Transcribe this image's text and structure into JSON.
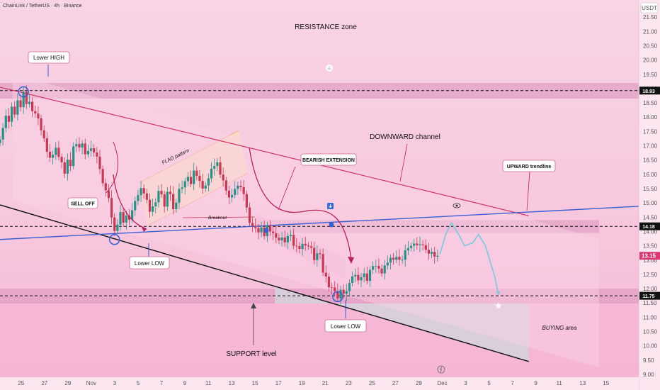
{
  "symbol": "ChainLink / TetherUS · 4h · Binance",
  "currency": "USDT",
  "colors": {
    "resistance_band": "#d88fbc",
    "support_band": "#d88fbc",
    "channel_line": "#cf3266",
    "support_line": "#111111",
    "trendline": "#3b5fd1",
    "bull": "#2b8f86",
    "bear": "#c23a54",
    "projection": "#7cc8df",
    "price_tag": "#d93872"
  },
  "chart_data": {
    "type": "candlestick",
    "y_ticks": [
      "21.50",
      "21.00",
      "20.50",
      "20.00",
      "19.50",
      "19.00",
      "18.50",
      "18.00",
      "17.50",
      "17.00",
      "16.50",
      "16.00",
      "15.50",
      "15.00",
      "14.50",
      "14.00",
      "13.50",
      "13.00",
      "12.50",
      "12.00",
      "11.50",
      "11.00",
      "10.50",
      "10.00",
      "9.50",
      "9.00"
    ],
    "ylim": [
      8.9,
      22.1
    ],
    "x_ticks": [
      "25",
      "27",
      "29",
      "Nov",
      "3",
      "5",
      "7",
      "9",
      "11",
      "13",
      "15",
      "17",
      "19",
      "21",
      "23",
      "25",
      "27",
      "29",
      "Dec",
      "3",
      "5",
      "7",
      "9",
      "11",
      "13",
      "15"
    ],
    "x_tick_idx": [
      0,
      2,
      4,
      6,
      8,
      10,
      12,
      14,
      16,
      18,
      20,
      22,
      24,
      26,
      28,
      30,
      32,
      34,
      36,
      38,
      40,
      42,
      44,
      46,
      48,
      50
    ],
    "xlim": [
      -1.8,
      52.8
    ],
    "key_levels": [
      {
        "label": "18.93",
        "value": 18.93,
        "band": [
          18.65,
          19.2
        ]
      },
      {
        "label": "14.18",
        "value": 14.18,
        "band": [
          13.95,
          14.4
        ]
      },
      {
        "label": "11.75",
        "value": 11.75,
        "band": [
          11.48,
          12.0
        ]
      }
    ],
    "current_price": {
      "label": "13.15",
      "value": 13.15
    },
    "closes": [
      17.22,
      17.62,
      18.05,
      17.84,
      18.37,
      18.09,
      18.59,
      18.35,
      18.89,
      18.46,
      18.54,
      18.21,
      18.13,
      17.96,
      17.54,
      17.26,
      16.79,
      16.58,
      16.68,
      16.93,
      16.61,
      16.42,
      16.02,
      16.51,
      16.29,
      16.98,
      17.06,
      16.94,
      17.08,
      16.7,
      16.82,
      16.91,
      16.76,
      16.62,
      16.19,
      15.69,
      15.44,
      15.17,
      14.49,
      14.02,
      14.24,
      14.68,
      14.31,
      14.56,
      14.41,
      14.74,
      15.07,
      15.27,
      15.52,
      15.33,
      15.11,
      14.69,
      14.88,
      15.02,
      15.42,
      15.3,
      14.87,
      15.39,
      15.31,
      14.78,
      15.01,
      15.49,
      15.54,
      15.76,
      15.91,
      15.66,
      16.13,
      15.95,
      15.77,
      15.5,
      15.61,
      15.86,
      16.2,
      16.29,
      16.42,
      15.99,
      15.79,
      15.43,
      15.19,
      15.28,
      15.49,
      15.6,
      15.55,
      15.31,
      14.84,
      14.3,
      14.19,
      14.12,
      13.97,
      14.14,
      13.84,
      14.22,
      14.0,
      13.94,
      13.78,
      13.69,
      13.79,
      13.62,
      13.84,
      13.88,
      13.5,
      13.49,
      13.39,
      13.57,
      13.51,
      13.48,
      13.43,
      13.0,
      13.24,
      13.21,
      12.56,
      12.42,
      12.05,
      12.04,
      11.91,
      11.66,
      11.96,
      11.82,
      11.91,
      12.2,
      12.43,
      12.48,
      12.29,
      12.4,
      12.53,
      12.27,
      12.66,
      12.79,
      12.79,
      12.7,
      12.53,
      12.81,
      12.91,
      13.08,
      13.01,
      13.11,
      13.01,
      13.01,
      13.34,
      13.42,
      13.5,
      13.58,
      13.52,
      13.55,
      13.52,
      13.36,
      13.22,
      13.29,
      13.12,
      13.15
    ],
    "series": [
      {
        "name": "",
        "type": "line",
        "points": [
          [
            -1.8,
            19.05
          ],
          [
            43.4,
            14.55
          ]
        ]
      },
      {
        "name": "",
        "type": "line",
        "points": [
          [
            -1.8,
            14.93
          ],
          [
            43.4,
            9.45
          ]
        ]
      },
      {
        "name": "",
        "type": "line",
        "points": [
          [
            -1.8,
            13.72
          ],
          [
            52.8,
            14.88
          ]
        ]
      }
    ],
    "projection": [
      [
        35.8,
        13.2
      ],
      [
        36.3,
        13.9
      ],
      [
        36.8,
        14.3
      ],
      [
        37.4,
        13.9
      ],
      [
        37.9,
        13.5
      ],
      [
        38.6,
        13.6
      ],
      [
        39.1,
        13.9
      ],
      [
        39.7,
        13.5
      ],
      [
        40.5,
        12.4
      ],
      [
        40.8,
        11.8
      ]
    ],
    "target_value": 11.4,
    "annotations": {
      "resistance_zone": "RESISTANCE zone",
      "lower_high": "Lower HIGH",
      "sell_off": "SELL OFF",
      "flag_pattern": "FLAG pattern",
      "breakout": "Breakout",
      "bearish_extension": "BEARISH EXTENSION",
      "downward_channel": "DOWNWARD channel",
      "upward_trendline": "UPWARD trendline",
      "lower_low_1": "Lower LOW",
      "lower_low_2": "Lower LOW",
      "support_level": "SUPPORT level",
      "buying_area": "BUYING area"
    }
  }
}
